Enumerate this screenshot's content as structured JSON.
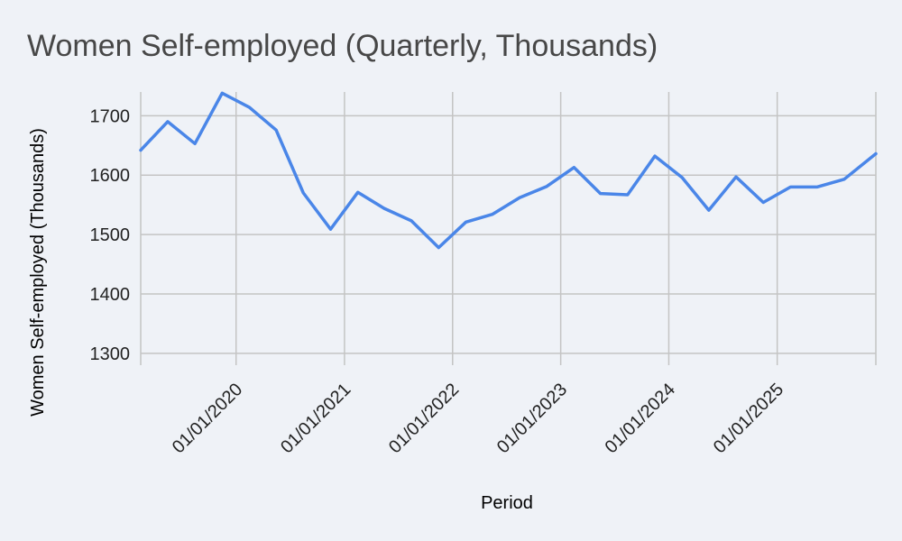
{
  "chart_data": {
    "type": "line",
    "title": "Women Self-employed (Quarterly, Thousands)",
    "xlabel": "Period",
    "ylabel": "Women Self-employed (Thousands)",
    "x_ticks": [
      "01/01/2020",
      "01/01/2021",
      "01/01/2022",
      "01/01/2023",
      "01/01/2024",
      "01/01/2025"
    ],
    "y_ticks": [
      1300,
      1400,
      1500,
      1600,
      1700
    ],
    "ylim": [
      1280,
      1740
    ],
    "xlim": [
      "2019-02-13",
      "2025-11-30"
    ],
    "grid": true,
    "legend": "none",
    "series": [
      {
        "color": "#4a86e8",
        "x": [
          "2019-02-13",
          "2019-05-15",
          "2019-08-15",
          "2019-11-15",
          "2020-02-15",
          "2020-05-15",
          "2020-08-15",
          "2020-11-15",
          "2021-02-15",
          "2021-05-15",
          "2021-08-15",
          "2021-11-15",
          "2022-02-15",
          "2022-05-15",
          "2022-08-15",
          "2022-11-15",
          "2023-02-15",
          "2023-05-15",
          "2023-08-15",
          "2023-11-15",
          "2024-02-15",
          "2024-05-15",
          "2024-08-15",
          "2024-11-15",
          "2025-02-15",
          "2025-05-15",
          "2025-08-15",
          "2025-11-30"
        ],
        "values": [
          1642,
          1690,
          1653,
          1738,
          1714,
          1676,
          1570,
          1509,
          1571,
          1544,
          1523,
          1478,
          1521,
          1534,
          1562,
          1581,
          1613,
          1569,
          1567,
          1632,
          1596,
          1541,
          1597,
          1554,
          1580,
          1580,
          1593,
          1636
        ]
      }
    ]
  }
}
